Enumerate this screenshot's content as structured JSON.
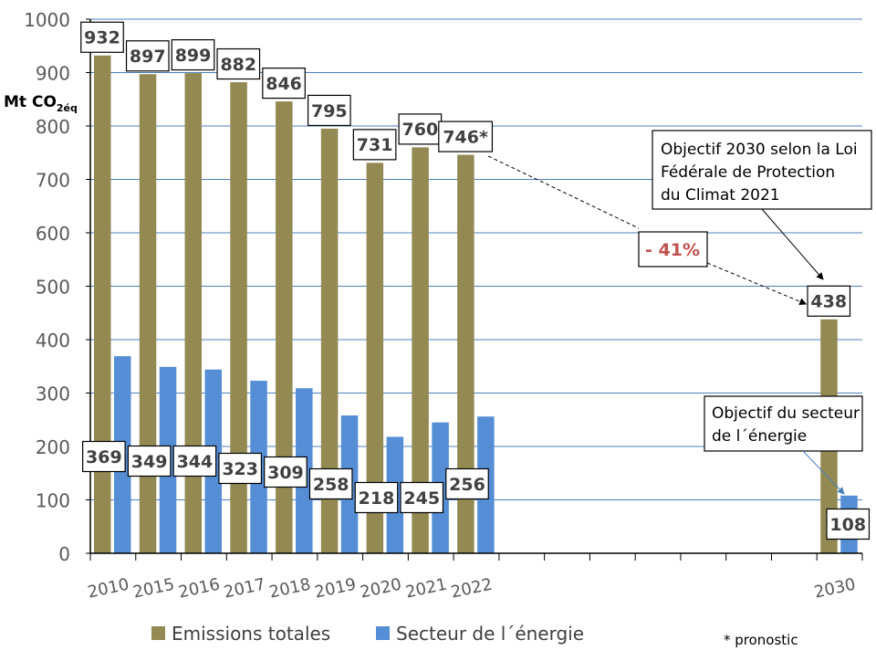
{
  "chart_data": {
    "type": "bar",
    "ylabel": "Mt CO",
    "ylabel_sub": "2éq",
    "ylim": [
      0,
      1000
    ],
    "yticks": [
      0,
      100,
      200,
      300,
      400,
      500,
      600,
      700,
      800,
      900,
      1000
    ],
    "grid": true,
    "categories": [
      "2010",
      "2015",
      "2016",
      "2017",
      "2018",
      "2019",
      "2020",
      "2021",
      "2022",
      "",
      "",
      "",
      "",
      "",
      "",
      "",
      "2030"
    ],
    "series": [
      {
        "name": "Emissions totales",
        "color": "#938953",
        "values": [
          932,
          897,
          899,
          882,
          846,
          795,
          731,
          760,
          746,
          null,
          null,
          null,
          null,
          null,
          null,
          null,
          438
        ],
        "labels": [
          "932",
          "897",
          "899",
          "882",
          "846",
          "795",
          "731",
          "760",
          "746*",
          "",
          "",
          "",
          "",
          "",
          "",
          "",
          "438"
        ]
      },
      {
        "name": "Secteur de l´énergie",
        "color": "#558ED5",
        "values": [
          369,
          349,
          344,
          323,
          309,
          258,
          218,
          245,
          256,
          null,
          null,
          null,
          null,
          null,
          null,
          null,
          108
        ],
        "labels": [
          "369",
          "349",
          "344",
          "323",
          "309",
          "258",
          "218",
          "245",
          "256",
          "",
          "",
          "",
          "",
          "",
          "",
          "",
          "108"
        ]
      }
    ],
    "legend_position": "bottom",
    "annotations": {
      "reduction": "- 41%",
      "reduction_color": "#C0504D",
      "target_total": [
        "Objectif 2030 selon la Loi",
        "Fédérale de Protection",
        "du Climat 2021"
      ],
      "target_energy": [
        "Objectif du secteur",
        "de l´énergie"
      ],
      "footnote": "* pronostic"
    }
  }
}
